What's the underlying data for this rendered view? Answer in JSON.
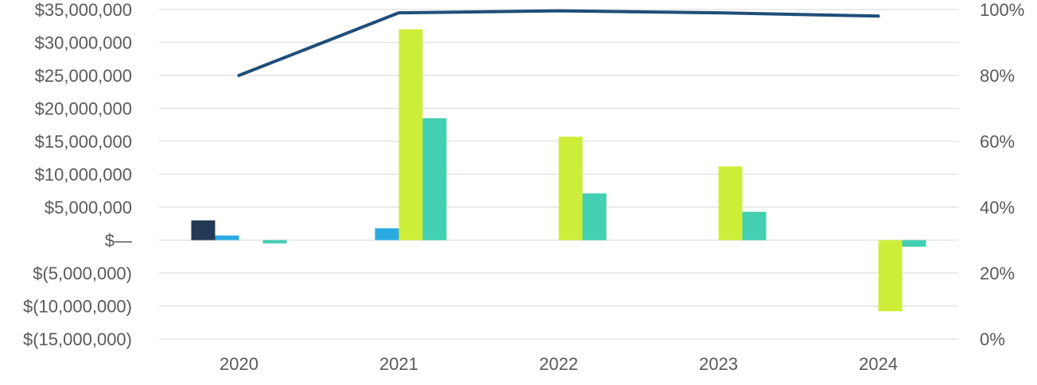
{
  "chart_data": {
    "type": "bar",
    "categories": [
      "2020",
      "2021",
      "2022",
      "2023",
      "2024"
    ],
    "series": [
      {
        "kind": "bar",
        "axis": "left",
        "color": "#243955",
        "values": [
          3000000,
          0,
          0,
          0,
          0
        ]
      },
      {
        "kind": "bar",
        "axis": "left",
        "color": "#29abe2",
        "values": [
          700000,
          1800000,
          0,
          0,
          0
        ]
      },
      {
        "kind": "bar",
        "axis": "left",
        "color": "#cdee38",
        "values": [
          0,
          32000000,
          15700000,
          11200000,
          -10800000
        ]
      },
      {
        "kind": "bar",
        "axis": "left",
        "color": "#42cfb2",
        "values": [
          -500000,
          18500000,
          7100000,
          4300000,
          -1000000
        ]
      },
      {
        "kind": "line",
        "axis": "right",
        "color": "#1f4e79",
        "values": [
          80,
          99,
          99.6,
          99,
          98
        ]
      }
    ],
    "y_left": {
      "ylim": [
        -15000000,
        35000000
      ],
      "ticks": [
        35000000,
        30000000,
        25000000,
        20000000,
        15000000,
        10000000,
        5000000,
        0,
        -5000000,
        -10000000,
        -15000000
      ],
      "tick_labels": [
        "$35,000,000",
        "$30,000,000",
        "$25,000,000",
        "$20,000,000",
        "$15,000,000",
        "$10,000,000",
        "$5,000,000",
        "$—",
        "$(5,000,000)",
        "$(10,000,000)",
        "$(15,000,000)"
      ]
    },
    "y_right": {
      "ylim": [
        0,
        100
      ],
      "ticks": [
        100,
        80,
        60,
        40,
        20,
        0
      ],
      "tick_labels": [
        "100%",
        "80%",
        "60%",
        "40%",
        "20%",
        "0%"
      ]
    },
    "x_tick_labels": [
      "2020",
      "2021",
      "2022",
      "2023",
      "2024"
    ],
    "title": "",
    "xlabel": "",
    "ylabel": "",
    "grid": true,
    "legend": false
  }
}
